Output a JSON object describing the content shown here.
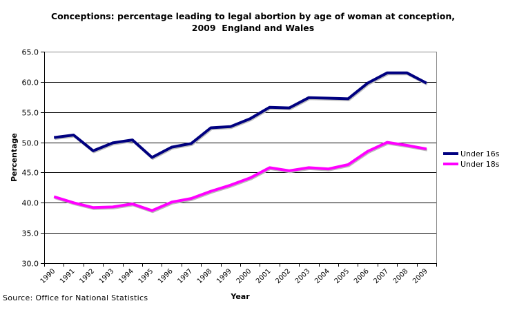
{
  "chart_data": {
    "type": "line",
    "title": "Conceptions: percentage leading to legal abortion by age of woman at conception,",
    "subtitle": "2009  England and Wales",
    "xlabel": "Year",
    "ylabel": "Percentage",
    "ylim": [
      30.0,
      65.0
    ],
    "yticks": [
      "30.0",
      "35.0",
      "40.0",
      "45.0",
      "50.0",
      "55.0",
      "60.0",
      "65.0"
    ],
    "categories": [
      "1990",
      "1991",
      "1992",
      "1993",
      "1994",
      "1995",
      "1996",
      "1997",
      "1998",
      "1999",
      "2000",
      "2001",
      "2002",
      "2003",
      "2004",
      "2005",
      "2006",
      "2007",
      "2008",
      "2009"
    ],
    "grid": true,
    "legend_position": "right",
    "series": [
      {
        "name": "Under 16s",
        "color": "#000080",
        "values": [
          50.8,
          51.2,
          48.6,
          49.9,
          50.4,
          47.5,
          49.2,
          49.8,
          52.4,
          52.6,
          53.9,
          55.8,
          55.7,
          57.4,
          57.3,
          57.2,
          59.8,
          61.5,
          61.5,
          59.8
        ]
      },
      {
        "name": "Under 18s",
        "color": "#FF00FF",
        "values": [
          41.0,
          40.0,
          39.2,
          39.3,
          39.8,
          38.7,
          40.1,
          40.7,
          41.9,
          42.9,
          44.1,
          45.8,
          45.3,
          45.8,
          45.6,
          46.3,
          48.5,
          50.0,
          49.5,
          48.9
        ]
      }
    ],
    "source": "Source: Office for National Statistics"
  }
}
